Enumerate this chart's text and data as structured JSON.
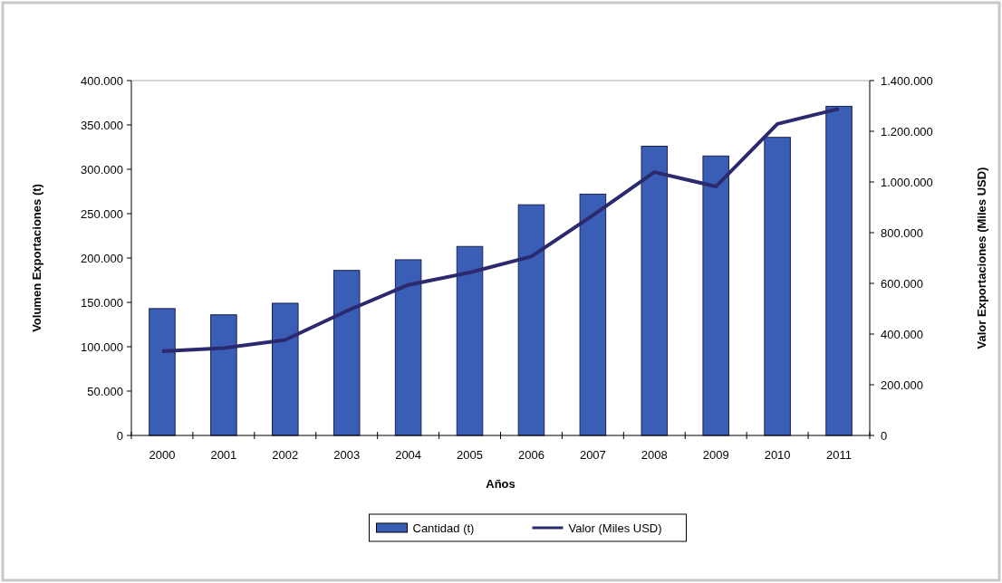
{
  "chart_data": {
    "type": "bar",
    "xlabel": "Años",
    "ylabel": "Volumen Exportaciones (t)",
    "y2label": "Valor Exportaciones (Miles USD)",
    "categories": [
      "2000",
      "2001",
      "2002",
      "2003",
      "2004",
      "2005",
      "2006",
      "2007",
      "2008",
      "2009",
      "2010",
      "2011"
    ],
    "series": [
      {
        "name": "Cantidad (t)",
        "color": "#3a5db5",
        "values": [
          143000,
          136000,
          149000,
          186000,
          198000,
          213000,
          260000,
          272000,
          326000,
          315000,
          336000,
          371000
        ]
      },
      {
        "name": "Valor (Miles USD)",
        "type": "line",
        "axis": "y2",
        "color": "#2c2a6e",
        "marker": "none",
        "values": [
          332000,
          345000,
          377000,
          491000,
          594000,
          643000,
          706000,
          868000,
          1039000,
          982000,
          1229000,
          1289000
        ]
      }
    ],
    "ylim": [
      0,
      400000
    ],
    "yticks": [
      {
        "value": 0,
        "label": "0"
      },
      {
        "value": 50000,
        "label": "50.000"
      },
      {
        "value": 100000,
        "label": "100.000"
      },
      {
        "value": 150000,
        "label": "150.000"
      },
      {
        "value": 200000,
        "label": "200.000"
      },
      {
        "value": 250000,
        "label": "250.000"
      },
      {
        "value": 300000,
        "label": "300.000"
      },
      {
        "value": 350000,
        "label": "350.000"
      },
      {
        "value": 400000,
        "label": "400.000"
      }
    ],
    "y2lim": [
      0,
      1400000
    ],
    "y2ticks": [
      {
        "value": 0,
        "label": "0"
      },
      {
        "value": 200000,
        "label": "200.000"
      },
      {
        "value": 400000,
        "label": "400.000"
      },
      {
        "value": 600000,
        "label": "600.000"
      },
      {
        "value": 800000,
        "label": "800.000"
      },
      {
        "value": 1000000,
        "label": "1.000.000"
      },
      {
        "value": 1200000,
        "label": "1.200.000"
      },
      {
        "value": 1400000,
        "label": "1.400.000"
      }
    ],
    "grid": false,
    "legend": "bottom"
  }
}
